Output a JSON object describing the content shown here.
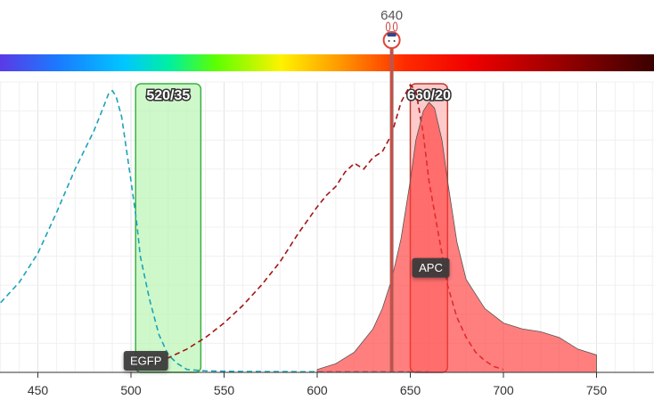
{
  "chart_data": {
    "type": "area",
    "xlim": [
      430,
      780
    ],
    "ylim": [
      0,
      100
    ],
    "grid": true,
    "x_ticks": [
      450,
      500,
      550,
      600,
      650,
      700,
      750
    ],
    "laser": {
      "label": "640",
      "wavelength": 640,
      "color": "#e0443a",
      "icon": "bunny-mascot-icon"
    },
    "filters": [
      {
        "label": "520/35",
        "center": 520,
        "width": 35,
        "fill": "#b9f5b4",
        "stroke": "#3cb043"
      },
      {
        "label": "660/20",
        "center": 660,
        "width": 20,
        "fill": "#ffb3b3",
        "stroke": "#c0392b"
      }
    ],
    "series": [
      {
        "name": "EGFP",
        "kind": "excitation",
        "style": "dashed",
        "color": "#1aa3b8",
        "x": [
          430,
          440,
          450,
          460,
          470,
          480,
          485,
          488,
          490,
          492,
          495,
          500,
          503,
          505,
          510,
          515,
          520,
          525,
          530,
          540,
          560,
          600,
          640,
          660
        ],
        "y": [
          24,
          31,
          41,
          55,
          70,
          83,
          91,
          96,
          97,
          95,
          88,
          66,
          52,
          40,
          25,
          13,
          6,
          3,
          1,
          0.5,
          0.3,
          0.2,
          0.2,
          0.2
        ]
      },
      {
        "name": "APC",
        "kind": "excitation",
        "style": "dashed",
        "color": "#a31515",
        "x": [
          510,
          520,
          530,
          540,
          550,
          560,
          570,
          580,
          590,
          600,
          605,
          610,
          615,
          620,
          625,
          630,
          635,
          640,
          645,
          650,
          653,
          657,
          660,
          665,
          670,
          675,
          680,
          685,
          690,
          695,
          700
        ],
        "y": [
          3,
          5,
          8,
          12,
          17,
          23,
          30,
          38,
          48,
          57,
          61,
          64,
          69,
          72,
          70,
          74,
          76,
          82,
          93,
          99,
          97,
          82,
          66,
          48,
          30,
          19,
          12,
          7,
          4,
          2,
          1
        ]
      },
      {
        "name": "APC",
        "kind": "emission",
        "style": "filled",
        "color": "#ff3b3b",
        "x": [
          600,
          610,
          620,
          630,
          635,
          640,
          645,
          650,
          653,
          657,
          660,
          663,
          667,
          670,
          675,
          680,
          690,
          700,
          710,
          720,
          730,
          740,
          750
        ],
        "y": [
          1,
          3,
          7,
          15,
          22,
          32,
          46,
          66,
          80,
          90,
          93,
          91,
          80,
          66,
          45,
          32,
          22,
          17,
          15,
          14,
          12,
          8,
          6
        ]
      }
    ],
    "tags": [
      {
        "label": "EGFP",
        "series": "EGFP"
      },
      {
        "label": "APC",
        "series": "APC"
      }
    ]
  }
}
